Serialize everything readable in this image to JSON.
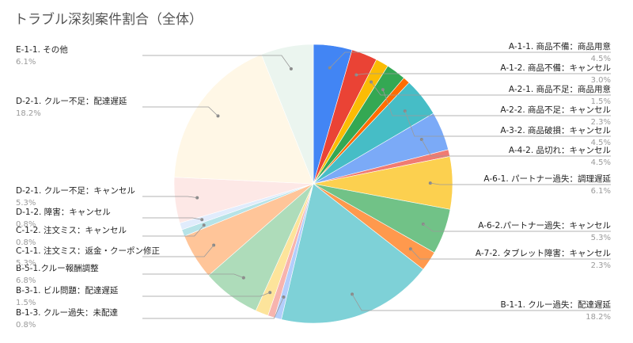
{
  "chart_data": {
    "type": "pie",
    "title": "トラブル深刻案件割合（全体）",
    "slices": [
      {
        "label": "A-1-1. 商品不備：商品用意",
        "pct_label": "4.5%",
        "value": 4.5,
        "color": "#4285f4"
      },
      {
        "label": "A-1-2. 商品不備：キャンセル",
        "pct_label": "3.0%",
        "value": 3.0,
        "color": "#ea4335"
      },
      {
        "label": "A-2-1. 商品不足：商品用意",
        "pct_label": "1.5%",
        "value": 1.5,
        "color": "#fbbc04"
      },
      {
        "label": "A-2-2. 商品不足：キャンセル",
        "pct_label": "2.3%",
        "value": 2.3,
        "color": "#34a853"
      },
      {
        "label": "",
        "pct_label": "",
        "value": 0.8,
        "color": "#ff6d01"
      },
      {
        "label": "A-3-2. 商品破損：キャンセル",
        "pct_label": "4.5%",
        "value": 4.5,
        "color": "#46bdc6"
      },
      {
        "label": "A-4-2. 品切れ：キャンセル",
        "pct_label": "4.5%",
        "value": 4.5,
        "color": "#7baaf7"
      },
      {
        "label": "",
        "pct_label": "",
        "value": 0.8,
        "color": "#f07b72"
      },
      {
        "label": "A-6-1. パートナー過失：調理遅延",
        "pct_label": "6.1%",
        "value": 6.1,
        "color": "#fcd04f"
      },
      {
        "label": "A-6-2.パートナー過失：キャンセル",
        "pct_label": "5.3%",
        "value": 5.3,
        "color": "#71c287"
      },
      {
        "label": "A-7-2. タブレット障害：キャンセル",
        "pct_label": "2.3%",
        "value": 2.3,
        "color": "#ff994d"
      },
      {
        "label": "B-1-1. クルー過失：配達遅延",
        "pct_label": "18.2%",
        "value": 18.2,
        "color": "#7ed1d7"
      },
      {
        "label": "B-1-3. クルー過失：未配達",
        "pct_label": "0.8%",
        "value": 0.8,
        "color": "#b3cefb"
      },
      {
        "label": "",
        "pct_label": "",
        "value": 0.8,
        "color": "#f7b4ae"
      },
      {
        "label": "B-3-1. ビル問題：配達遅延",
        "pct_label": "1.5%",
        "value": 1.5,
        "color": "#fde49b"
      },
      {
        "label": "B-5-1.クルー報酬調整",
        "pct_label": "6.8%",
        "value": 6.8,
        "color": "#aedcba"
      },
      {
        "label": "C-1-1. 注文ミス：返金・クーポン修正",
        "pct_label": "5.3%",
        "value": 5.3,
        "color": "#ffc599"
      },
      {
        "label": "C-1-2. 注文ミス：キャンセル",
        "pct_label": "0.8%",
        "value": 0.8,
        "color": "#b6e3e7"
      },
      {
        "label": "D-1-2. 障害：キャンセル",
        "pct_label": "0.8%",
        "value": 0.8,
        "color": "#e1ecfc"
      },
      {
        "label": "D-2-1. クルー不足：キャンセル",
        "pct_label": "5.3%",
        "value": 5.3,
        "color": "#fde8e6"
      },
      {
        "label": "D-2-1. クルー不足：配達遅延",
        "pct_label": "18.2%",
        "value": 18.2,
        "color": "#fff7e6"
      },
      {
        "label": "E-1-1. その他",
        "pct_label": "6.1%",
        "value": 6.1,
        "color": "#ebf5ef"
      }
    ]
  }
}
